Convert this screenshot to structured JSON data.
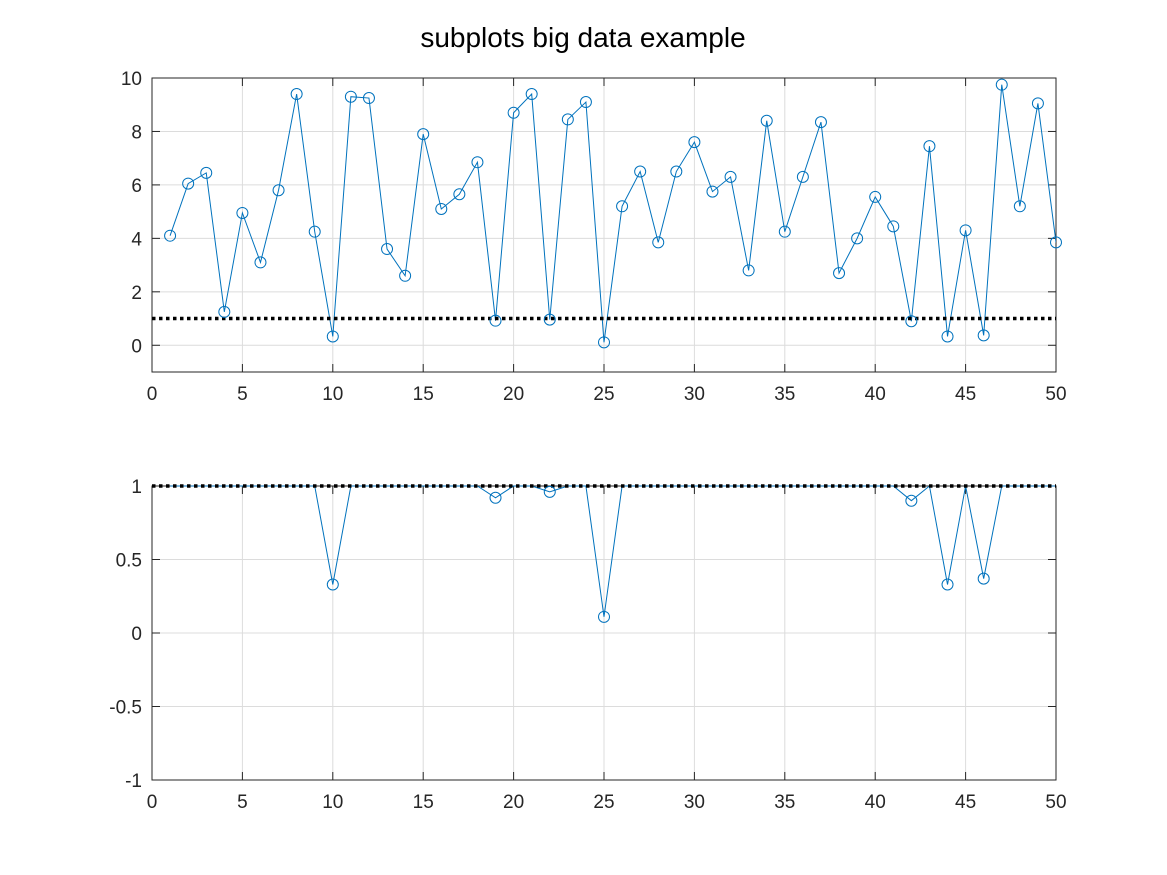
{
  "chart_data": {
    "title": "subplots  big data example",
    "colors": {
      "series": "#0072bd",
      "threshold": "#000000",
      "axis": "#262626",
      "grid": "#dcdcdc"
    },
    "plots": [
      {
        "type": "line",
        "markers": "circle",
        "grid": true,
        "xlim": [
          0,
          50
        ],
        "ylim": [
          -1,
          10
        ],
        "xticks": [
          0,
          5,
          10,
          15,
          20,
          25,
          30,
          35,
          40,
          45,
          50
        ],
        "yticks": [
          0,
          2,
          4,
          6,
          8,
          10
        ],
        "ytick_labels": [
          "0",
          "2",
          "4",
          "6",
          "8",
          "10"
        ],
        "threshold": 1,
        "x": [
          1,
          2,
          3,
          4,
          5,
          6,
          7,
          8,
          9,
          10,
          11,
          12,
          13,
          14,
          15,
          16,
          17,
          18,
          19,
          20,
          21,
          22,
          23,
          24,
          25,
          26,
          27,
          28,
          29,
          30,
          31,
          32,
          33,
          34,
          35,
          36,
          37,
          38,
          39,
          40,
          41,
          42,
          43,
          44,
          45,
          46,
          47,
          48,
          49,
          50
        ],
        "y": [
          4.1,
          6.05,
          6.45,
          1.25,
          4.95,
          3.1,
          5.8,
          9.4,
          4.25,
          0.33,
          9.3,
          9.25,
          3.6,
          2.6,
          7.9,
          5.1,
          5.65,
          6.85,
          0.92,
          8.7,
          9.4,
          0.96,
          8.45,
          9.1,
          0.11,
          5.2,
          6.5,
          3.85,
          6.5,
          7.6,
          5.75,
          6.3,
          2.8,
          8.4,
          4.25,
          6.3,
          8.35,
          2.7,
          4.0,
          5.55,
          4.45,
          0.9,
          7.45,
          0.33,
          4.3,
          0.37,
          9.75,
          5.2,
          9.05,
          3.85
        ]
      },
      {
        "type": "line",
        "markers": "circle",
        "grid": true,
        "xlim": [
          0,
          50
        ],
        "ylim": [
          -1,
          1
        ],
        "xticks": [
          0,
          5,
          10,
          15,
          20,
          25,
          30,
          35,
          40,
          45,
          50
        ],
        "yticks": [
          -1,
          -0.5,
          0,
          0.5,
          1
        ],
        "ytick_labels": [
          "-1",
          "-0.5",
          "0",
          "0.5",
          "1"
        ],
        "threshold": 1,
        "marker_x": [
          10,
          19,
          22,
          25,
          42,
          44,
          46
        ],
        "x": [
          1,
          2,
          3,
          4,
          5,
          6,
          7,
          8,
          9,
          10,
          11,
          12,
          13,
          14,
          15,
          16,
          17,
          18,
          19,
          20,
          21,
          22,
          23,
          24,
          25,
          26,
          27,
          28,
          29,
          30,
          31,
          32,
          33,
          34,
          35,
          36,
          37,
          38,
          39,
          40,
          41,
          42,
          43,
          44,
          45,
          46,
          47,
          48,
          49,
          50
        ],
        "y": [
          1,
          1,
          1,
          1,
          1,
          1,
          1,
          1,
          1,
          0.33,
          1,
          1,
          1,
          1,
          1,
          1,
          1,
          1,
          0.92,
          1,
          1,
          0.96,
          1,
          1,
          0.11,
          1,
          1,
          1,
          1,
          1,
          1,
          1,
          1,
          1,
          1,
          1,
          1,
          1,
          1,
          1,
          1,
          0.9,
          1,
          0.33,
          1,
          0.37,
          1,
          1,
          1,
          1
        ]
      }
    ]
  }
}
